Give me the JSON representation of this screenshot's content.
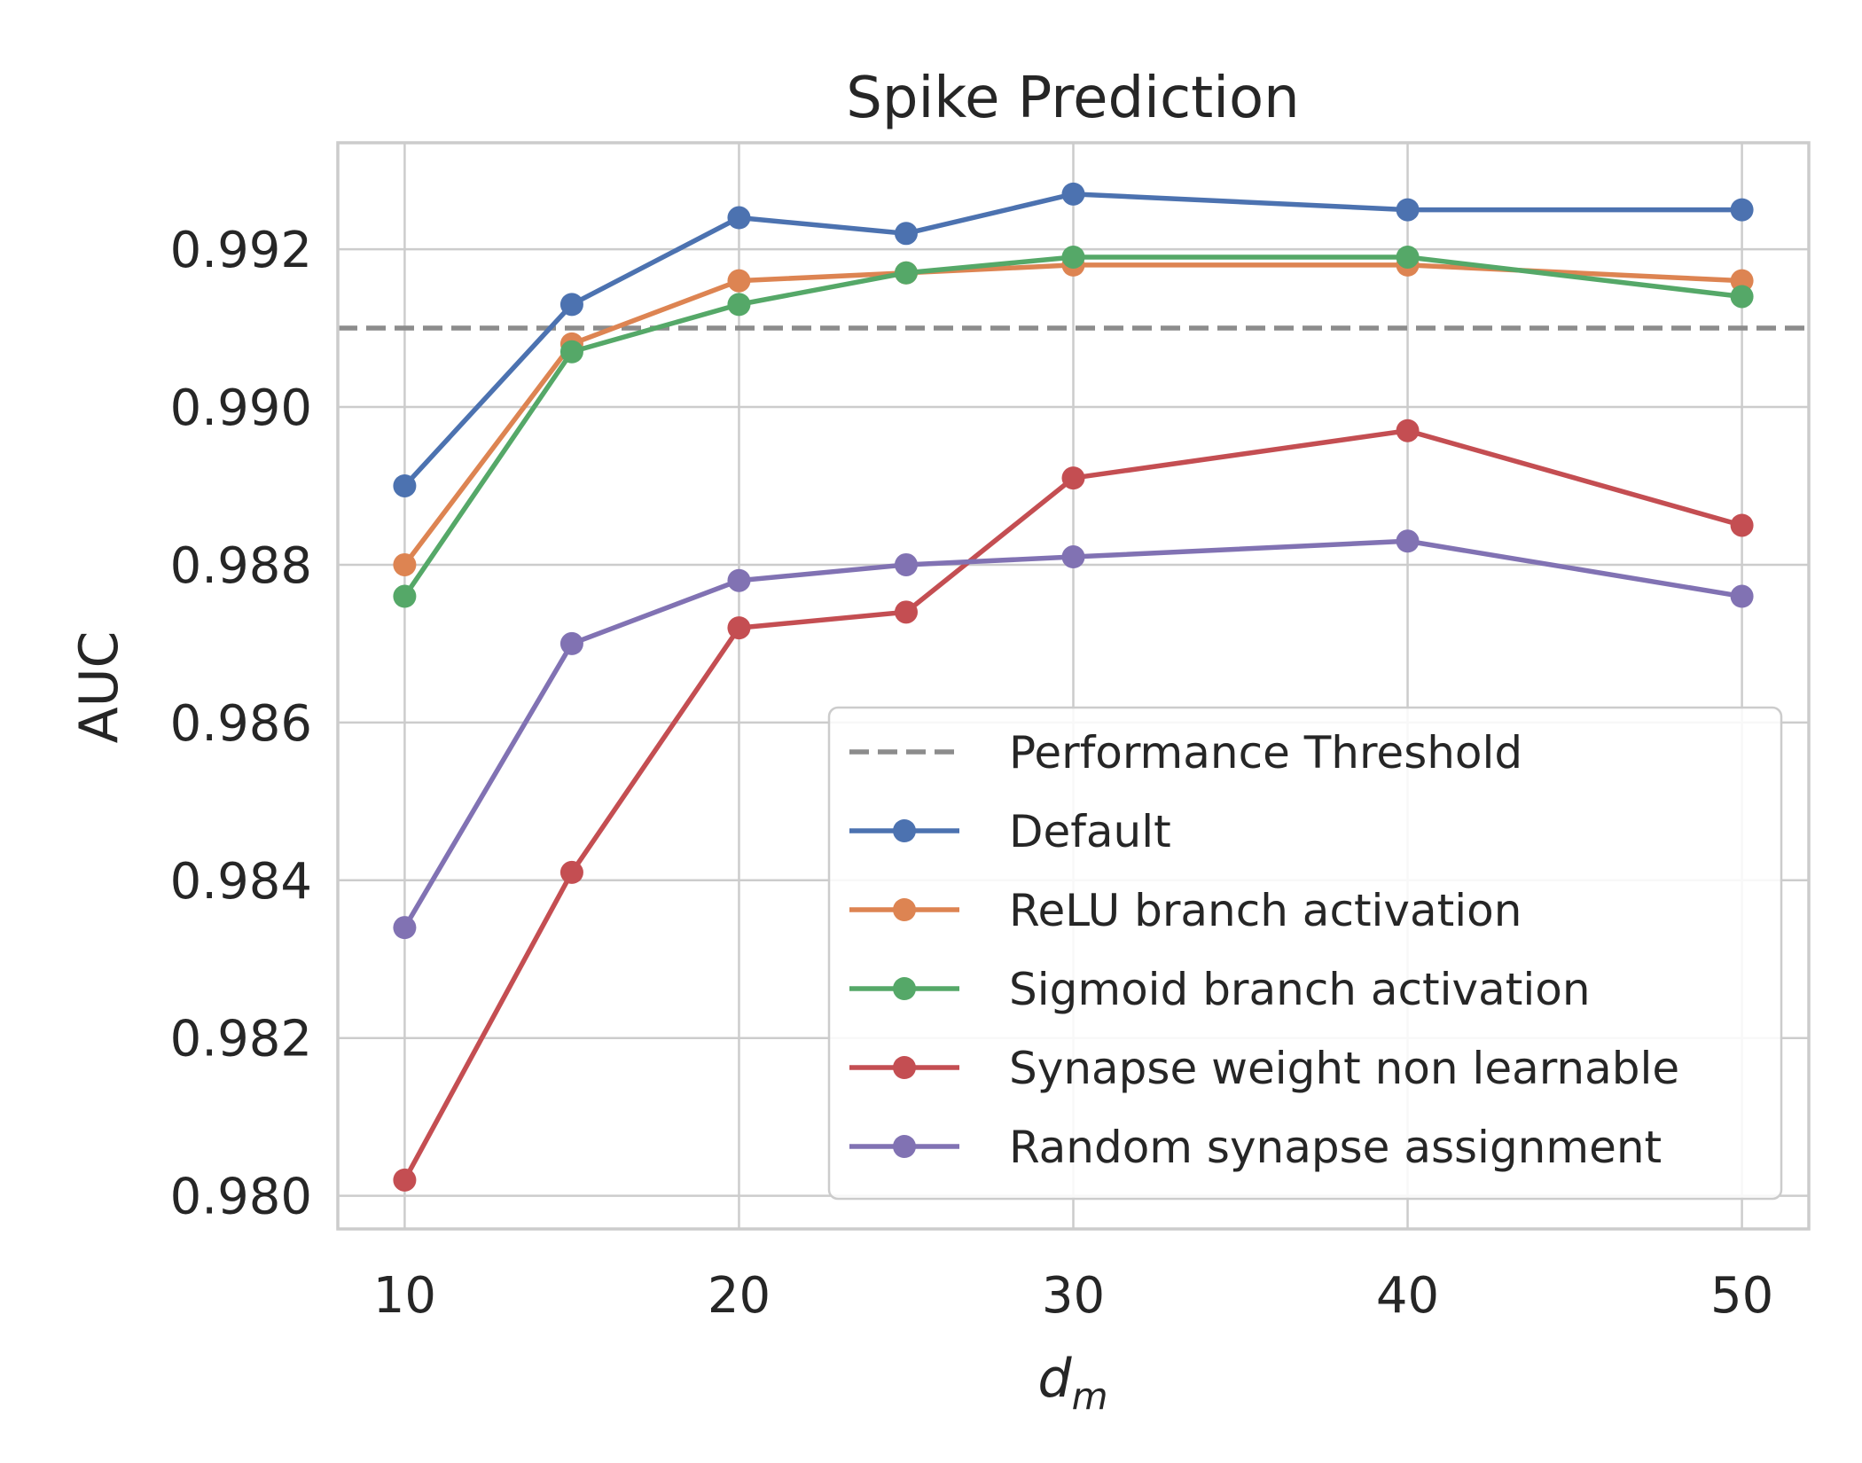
{
  "chart_data": {
    "type": "line",
    "title": "Spike Prediction",
    "xlabel_main": "d",
    "xlabel_sub": "m",
    "ylabel": "AUC",
    "x": [
      10,
      15,
      20,
      25,
      30,
      40,
      50
    ],
    "xticks": [
      "10",
      "20",
      "30",
      "40",
      "50"
    ],
    "xtick_values": [
      10,
      20,
      30,
      40,
      50
    ],
    "yticks": [
      "0.980",
      "0.982",
      "0.984",
      "0.986",
      "0.988",
      "0.990",
      "0.992"
    ],
    "ytick_values": [
      0.98,
      0.982,
      0.984,
      0.986,
      0.988,
      0.99,
      0.992
    ],
    "xlim": [
      8,
      52
    ],
    "ylim": [
      0.97958,
      0.99335
    ],
    "grid": true,
    "legend_position": "lower-right",
    "threshold": {
      "name": "Performance Threshold",
      "value": 0.991,
      "color": "#8c8c8c",
      "style": "dashed"
    },
    "series": [
      {
        "name": "Default",
        "color": "#4c72b0",
        "values": [
          0.989,
          0.9913,
          0.9924,
          0.9922,
          0.9927,
          0.9925,
          0.9925
        ]
      },
      {
        "name": "ReLU branch activation",
        "color": "#dd8452",
        "values": [
          0.988,
          0.9908,
          0.9916,
          0.9917,
          0.9918,
          0.9918,
          0.9916
        ]
      },
      {
        "name": "Sigmoid branch activation",
        "color": "#55a868",
        "values": [
          0.9876,
          0.9907,
          0.9913,
          0.9917,
          0.9919,
          0.9919,
          0.9914
        ]
      },
      {
        "name": "Synapse weight non learnable",
        "color": "#c44e52",
        "values": [
          0.9802,
          0.9841,
          0.9872,
          0.9874,
          0.9891,
          0.9897,
          0.9885
        ]
      },
      {
        "name": "Random synapse assignment",
        "color": "#8172b3",
        "values": [
          0.9834,
          0.987,
          0.9878,
          0.988,
          0.9881,
          0.9883,
          0.9876
        ]
      }
    ]
  }
}
